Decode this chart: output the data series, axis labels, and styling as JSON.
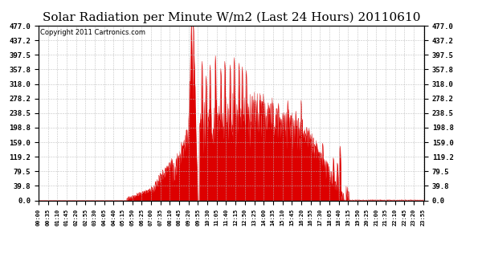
{
  "title": "Solar Radiation per Minute W/m2 (Last 24 Hours) 20110610",
  "copyright_text": "Copyright 2011 Cartronics.com",
  "y_ticks": [
    0.0,
    39.8,
    79.5,
    119.2,
    159.0,
    198.8,
    238.5,
    278.2,
    318.0,
    357.8,
    397.5,
    437.2,
    477.0
  ],
  "y_max": 477.0,
  "y_min": 0.0,
  "fill_color": "#dd0000",
  "line_color": "#dd0000",
  "background_color": "#ffffff",
  "grid_color": "#bbbbbb",
  "title_fontsize": 11,
  "copyright_fontsize": 6,
  "x_labels": [
    "00:00",
    "00:35",
    "01:10",
    "01:45",
    "02:20",
    "02:55",
    "03:30",
    "04:05",
    "04:40",
    "05:15",
    "05:50",
    "06:25",
    "07:00",
    "07:35",
    "08:10",
    "08:45",
    "09:20",
    "09:55",
    "10:30",
    "11:05",
    "11:40",
    "12:15",
    "12:50",
    "13:25",
    "14:00",
    "14:35",
    "15:10",
    "15:45",
    "16:20",
    "16:55",
    "17:30",
    "18:05",
    "18:40",
    "19:15",
    "19:50",
    "20:25",
    "21:00",
    "21:35",
    "22:10",
    "22:45",
    "23:20",
    "23:55"
  ]
}
